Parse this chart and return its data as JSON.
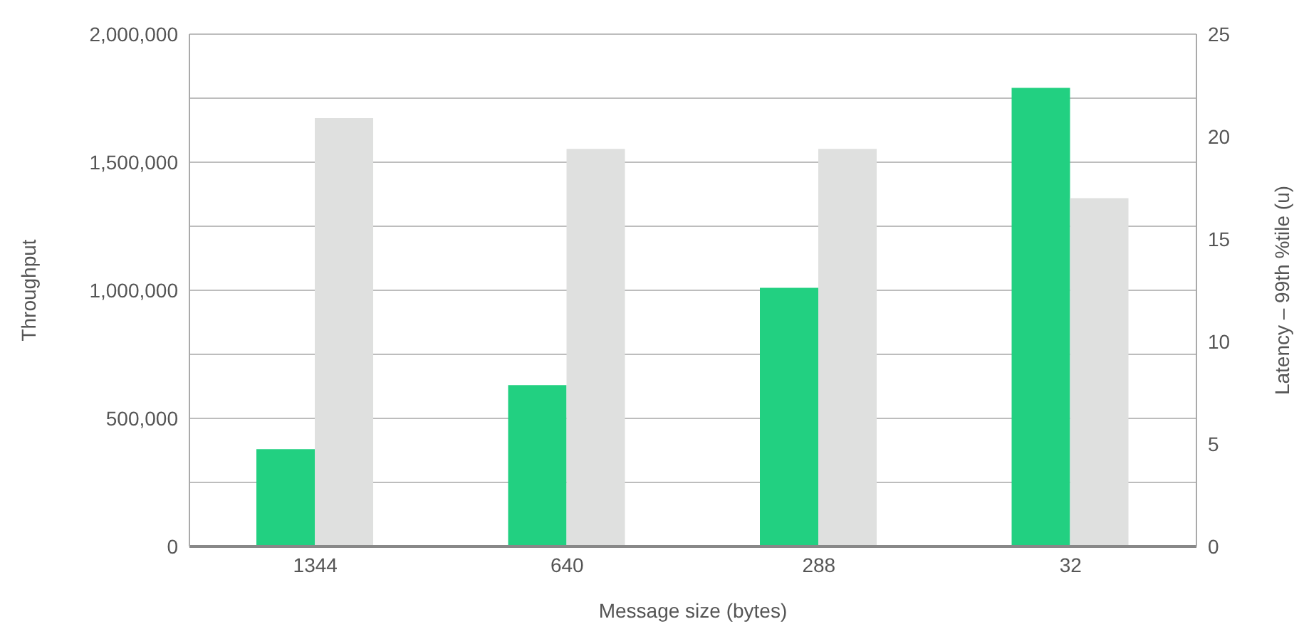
{
  "chart_data": {
    "type": "bar",
    "xlabel": "Message size (bytes)",
    "ylabel": "Throughput",
    "y2label": "Latency – 99th %tile (u)",
    "categories": [
      "1344",
      "640",
      "288",
      "32"
    ],
    "series": [
      {
        "color": "#22d081",
        "values": [
          380000,
          630000,
          1010000,
          1790000
        ]
      },
      {
        "color": "#dfe0df",
        "axis": "y2",
        "values": [
          20.9,
          19.4,
          19.4,
          17.0
        ]
      }
    ],
    "ylim": [
      0,
      2000000
    ],
    "yticks": [
      0,
      {
        "value": 250000,
        "label": null
      },
      {
        "value": 500000,
        "label": "500,000"
      },
      {
        "value": 750000,
        "label": null
      },
      {
        "value": 1000000,
        "label": "1,000,000"
      },
      {
        "value": 1250000,
        "label": null
      },
      {
        "value": 1500000,
        "label": "1,500,000"
      },
      {
        "value": 1750000,
        "label": null
      },
      {
        "value": 2000000,
        "label": "2,000,000"
      }
    ],
    "y2lim": [
      0,
      25
    ],
    "y2ticks": [
      0,
      5,
      10,
      15,
      20,
      25
    ],
    "grid": "y",
    "legend": false
  }
}
